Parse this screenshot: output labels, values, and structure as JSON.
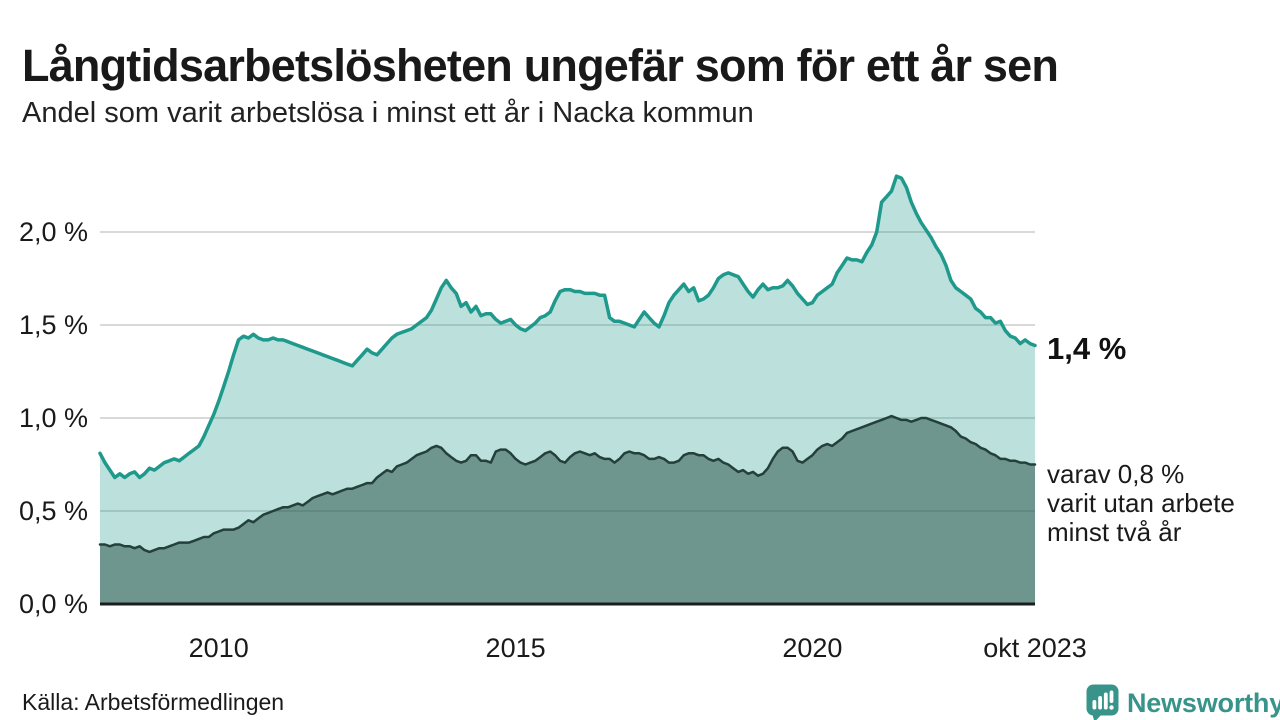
{
  "header": {
    "title": "Långtidsarbetslösheten ungefär som för ett år sen",
    "subtitle": "Andel som varit arbetslösa i minst ett år i Nacka kommun"
  },
  "annotations": {
    "latest_value": "1,4 %",
    "secondary_value": "varav 0,8 %\nvarit utan arbete\nminst två år"
  },
  "footer": {
    "source": "Källa: Arbetsförmedlingen",
    "brand": "Newsworthy"
  },
  "colors": {
    "accent_teal": "#1f998c",
    "light_fill": "rgba(32,153,138,0.30)",
    "dark_line": "#24403b",
    "dark_fill": "rgba(40,80,72,0.52)",
    "gridline": "#d9d9d9",
    "baseline": "#1d1d1d",
    "text": "#1a1a1a",
    "brand_teal": "#38948a"
  },
  "chart_data": {
    "type": "area",
    "title": "Långtidsarbetslösheten ungefär som för ett år sen",
    "subtitle": "Andel som varit arbetslösa i minst ett år i Nacka kommun",
    "unit": "%",
    "grid": true,
    "legend": "none (direct labels at line ends)",
    "x_axis": {
      "range": [
        2008.0,
        2023.75
      ],
      "ticks": [
        {
          "label": "2010",
          "value": 2010
        },
        {
          "label": "2015",
          "value": 2015
        },
        {
          "label": "2020",
          "value": 2020
        },
        {
          "label": "okt 2023",
          "value": 2023.75
        }
      ]
    },
    "y_axis": {
      "range": [
        0,
        2.3
      ],
      "ticks": [
        {
          "label": "0,0 %",
          "value": 0
        },
        {
          "label": "0,5 %",
          "value": 0.5
        },
        {
          "label": "1,0 %",
          "value": 1.0
        },
        {
          "label": "1,5 %",
          "value": 1.5
        },
        {
          "label": "2,0 %",
          "value": 2.0
        }
      ]
    },
    "series": [
      {
        "id": "minst-ett-ar",
        "name": "Andel arbetslösa minst ett år",
        "end_label": "1,4 %",
        "line_color": "#1f998c",
        "fill_color": "rgba(32,153,138,0.30)",
        "stroke_width": 3.5,
        "start_year": 2008,
        "monthly": true,
        "values": [
          0.81,
          0.76,
          0.72,
          0.68,
          0.7,
          0.68,
          0.7,
          0.71,
          0.68,
          0.7,
          0.73,
          0.72,
          0.74,
          0.76,
          0.77,
          0.78,
          0.77,
          0.79,
          0.81,
          0.83,
          0.85,
          0.9,
          0.96,
          1.02,
          1.09,
          1.17,
          1.25,
          1.34,
          1.42,
          1.44,
          1.43,
          1.45,
          1.43,
          1.42,
          1.42,
          1.43,
          1.42,
          1.42,
          1.41,
          1.4,
          1.39,
          1.38,
          1.37,
          1.36,
          1.35,
          1.34,
          1.33,
          1.32,
          1.31,
          1.3,
          1.29,
          1.28,
          1.31,
          1.34,
          1.37,
          1.35,
          1.34,
          1.37,
          1.4,
          1.43,
          1.45,
          1.46,
          1.47,
          1.48,
          1.5,
          1.52,
          1.54,
          1.58,
          1.64,
          1.7,
          1.74,
          1.7,
          1.67,
          1.6,
          1.62,
          1.57,
          1.6,
          1.55,
          1.56,
          1.56,
          1.53,
          1.51,
          1.52,
          1.53,
          1.5,
          1.48,
          1.47,
          1.49,
          1.51,
          1.54,
          1.55,
          1.57,
          1.63,
          1.68,
          1.69,
          1.69,
          1.68,
          1.68,
          1.67,
          1.67,
          1.67,
          1.66,
          1.66,
          1.54,
          1.52,
          1.52,
          1.51,
          1.5,
          1.49,
          1.53,
          1.57,
          1.54,
          1.51,
          1.49,
          1.55,
          1.62,
          1.66,
          1.69,
          1.72,
          1.68,
          1.7,
          1.63,
          1.64,
          1.66,
          1.7,
          1.75,
          1.77,
          1.78,
          1.77,
          1.76,
          1.72,
          1.68,
          1.65,
          1.69,
          1.72,
          1.69,
          1.7,
          1.7,
          1.71,
          1.74,
          1.71,
          1.67,
          1.64,
          1.61,
          1.62,
          1.66,
          1.68,
          1.7,
          1.72,
          1.78,
          1.82,
          1.86,
          1.85,
          1.85,
          1.84,
          1.89,
          1.93,
          2.0,
          2.16,
          2.19,
          2.22,
          2.3,
          2.29,
          2.24,
          2.16,
          2.1,
          2.05,
          2.01,
          1.97,
          1.92,
          1.88,
          1.82,
          1.74,
          1.7,
          1.68,
          1.66,
          1.64,
          1.59,
          1.57,
          1.54,
          1.54,
          1.51,
          1.52,
          1.47,
          1.44,
          1.43,
          1.4,
          1.42,
          1.4,
          1.39
        ]
      },
      {
        "id": "minst-tva-ar",
        "name": "varav utan arbete minst två år",
        "end_label": "varav 0,8 % varit utan arbete minst två år",
        "line_color": "#24403b",
        "fill_color": "rgba(40,80,72,0.52)",
        "stroke_width": 2.5,
        "start_year": 2008,
        "monthly": true,
        "values": [
          0.32,
          0.32,
          0.31,
          0.32,
          0.32,
          0.31,
          0.31,
          0.3,
          0.31,
          0.29,
          0.28,
          0.29,
          0.3,
          0.3,
          0.31,
          0.32,
          0.33,
          0.33,
          0.33,
          0.34,
          0.35,
          0.36,
          0.36,
          0.38,
          0.39,
          0.4,
          0.4,
          0.4,
          0.41,
          0.43,
          0.45,
          0.44,
          0.46,
          0.48,
          0.49,
          0.5,
          0.51,
          0.52,
          0.52,
          0.53,
          0.54,
          0.53,
          0.55,
          0.57,
          0.58,
          0.59,
          0.6,
          0.59,
          0.6,
          0.61,
          0.62,
          0.62,
          0.63,
          0.64,
          0.65,
          0.65,
          0.68,
          0.7,
          0.72,
          0.71,
          0.74,
          0.75,
          0.76,
          0.78,
          0.8,
          0.81,
          0.82,
          0.84,
          0.85,
          0.84,
          0.81,
          0.79,
          0.77,
          0.76,
          0.77,
          0.8,
          0.8,
          0.77,
          0.77,
          0.76,
          0.82,
          0.83,
          0.83,
          0.81,
          0.78,
          0.76,
          0.75,
          0.76,
          0.77,
          0.79,
          0.81,
          0.82,
          0.8,
          0.77,
          0.76,
          0.79,
          0.81,
          0.82,
          0.81,
          0.8,
          0.81,
          0.79,
          0.78,
          0.78,
          0.76,
          0.78,
          0.81,
          0.82,
          0.81,
          0.81,
          0.8,
          0.78,
          0.78,
          0.79,
          0.78,
          0.76,
          0.76,
          0.77,
          0.8,
          0.81,
          0.81,
          0.8,
          0.8,
          0.78,
          0.77,
          0.78,
          0.76,
          0.75,
          0.73,
          0.71,
          0.72,
          0.7,
          0.71,
          0.69,
          0.7,
          0.73,
          0.78,
          0.82,
          0.84,
          0.84,
          0.82,
          0.77,
          0.76,
          0.78,
          0.8,
          0.83,
          0.85,
          0.86,
          0.85,
          0.87,
          0.89,
          0.92,
          0.93,
          0.94,
          0.95,
          0.96,
          0.97,
          0.98,
          0.99,
          1.0,
          1.01,
          1.0,
          0.99,
          0.99,
          0.98,
          0.99,
          1.0,
          1.0,
          0.99,
          0.98,
          0.97,
          0.96,
          0.95,
          0.93,
          0.9,
          0.89,
          0.87,
          0.86,
          0.84,
          0.83,
          0.81,
          0.8,
          0.78,
          0.78,
          0.77,
          0.77,
          0.76,
          0.76,
          0.75,
          0.75
        ]
      }
    ]
  }
}
